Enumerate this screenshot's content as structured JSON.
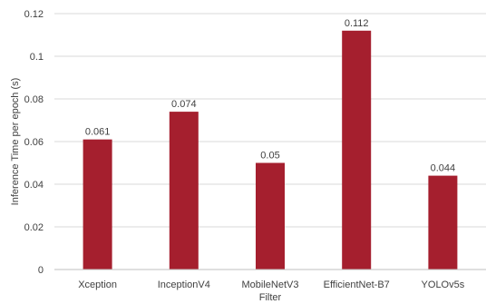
{
  "chart_data": {
    "type": "bar",
    "categories": [
      "Xception",
      "InceptionV4",
      "MobileNetV3",
      "EfficientNet-B7",
      "YOLOv5s"
    ],
    "values": [
      0.061,
      0.074,
      0.05,
      0.112,
      0.044
    ],
    "data_labels": [
      "0.061",
      "0.074",
      "0.05",
      "0.112",
      "0.044"
    ],
    "xlabel": "Filter",
    "ylabel": "Inference Time per epoch (s)",
    "ylim": [
      0,
      0.12
    ],
    "yticks": [
      0,
      0.02,
      0.04,
      0.06,
      0.08,
      0.1,
      0.12
    ],
    "ytick_labels": [
      "0",
      "0.02",
      "0.04",
      "0.06",
      "0.08",
      "0.1",
      "0.12"
    ],
    "grid": "horizontal",
    "legend": "none",
    "bar_color": "#a51f2e",
    "grid_color": "#d9d9d9"
  }
}
